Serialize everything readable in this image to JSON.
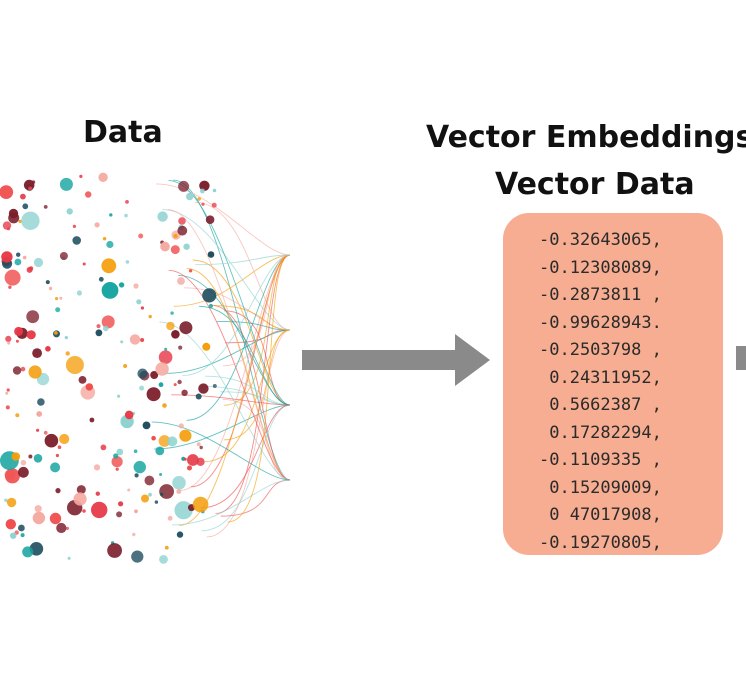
{
  "data_title": "Data",
  "vector_title_line1": "Vector Embeddings,",
  "vector_title_line2": "Vector Data",
  "vector_values": [
    "-0.32643065,",
    "-0.12308089,",
    "-0.2873811 ,",
    "-0.99628943.",
    "-0.2503798 ,",
    " 0.24311952,",
    " 0.5662387 ,",
    " 0.17282294,",
    "-0.1109335 ,",
    " 0.15209009,",
    " 0 47017908,",
    "-0.19270805,"
  ],
  "colors": {
    "arrow": "#8a8a8a",
    "box_fill": "#f7ad91",
    "dot_palette": [
      "#e63946",
      "#14a3a0",
      "#f59e0b",
      "#f5a9a0",
      "#1f4e5f",
      "#7b1e2b",
      "#8fd3d1",
      "#f04e4e"
    ]
  },
  "icons": {
    "data_visual": "dot-cluster-network",
    "arrow": "right-arrow-icon"
  }
}
